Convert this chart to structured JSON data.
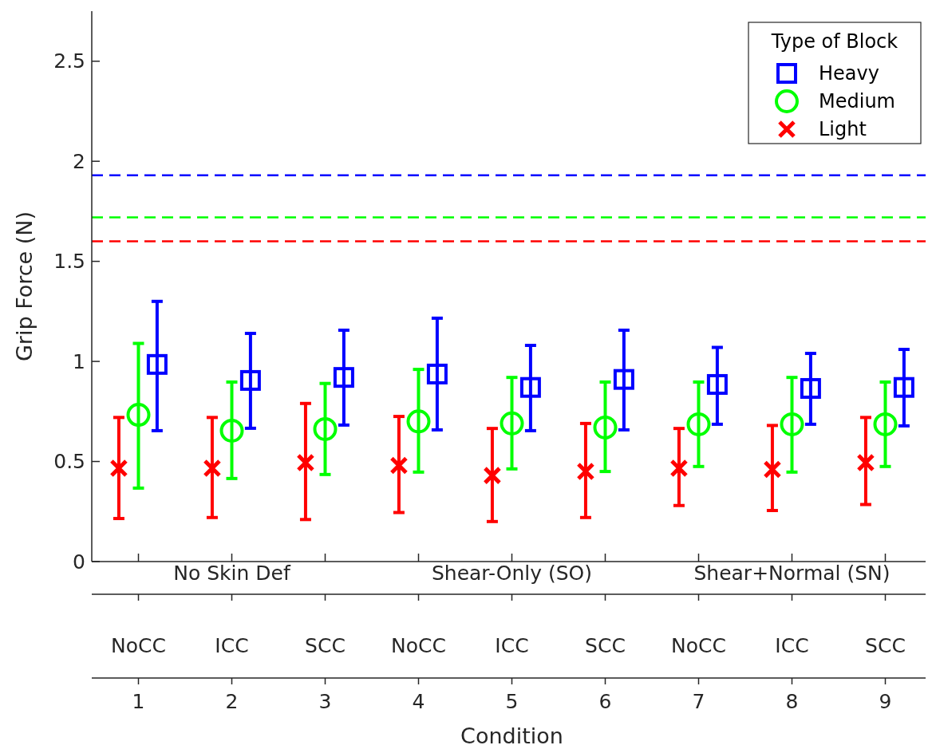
{
  "chart_data": {
    "type": "scatter",
    "xlabel": "Condition",
    "ylabel": "Grip Force (N)",
    "legend_title": "Type of Block",
    "legend": "top right",
    "grid": false,
    "xlim": [
      0.5,
      9.5
    ],
    "xticks": [
      1,
      2,
      3,
      4,
      5,
      6,
      7,
      8,
      9
    ],
    "ylim": [
      0,
      2.75
    ],
    "yticks": [
      0,
      0.5,
      1,
      1.5,
      2,
      2.5
    ],
    "series": [
      {
        "name": "Heavy",
        "color": "#0000ff",
        "marker": "square",
        "x": [
          1.2,
          2.2,
          3.2,
          4.2,
          5.2,
          6.2,
          7.2,
          8.2,
          9.2
        ],
        "values": [
          0.985,
          0.905,
          0.92,
          0.937,
          0.87,
          0.91,
          0.885,
          0.865,
          0.87
        ],
        "errors": [
          [
            0.654,
            1.3
          ],
          [
            0.666,
            1.14
          ],
          [
            0.682,
            1.156
          ],
          [
            0.658,
            1.216
          ],
          [
            0.654,
            1.08
          ],
          [
            0.658,
            1.156
          ],
          [
            0.686,
            1.07
          ],
          [
            0.686,
            1.04
          ],
          [
            0.678,
            1.06
          ]
        ]
      },
      {
        "name": "Medium",
        "color": "#00ff00",
        "marker": "circle",
        "x": [
          1,
          2,
          3,
          4,
          5,
          6,
          7,
          8,
          9
        ],
        "values": [
          0.733,
          0.654,
          0.662,
          0.7,
          0.69,
          0.67,
          0.686,
          0.686,
          0.686
        ],
        "errors": [
          [
            0.367,
            1.09
          ],
          [
            0.415,
            0.897
          ],
          [
            0.435,
            0.89
          ],
          [
            0.447,
            0.96
          ],
          [
            0.463,
            0.92
          ],
          [
            0.45,
            0.897
          ],
          [
            0.475,
            0.897
          ],
          [
            0.447,
            0.92
          ],
          [
            0.475,
            0.897
          ]
        ]
      },
      {
        "name": "Light",
        "color": "#ff0000",
        "marker": "cross",
        "x": [
          0.79,
          1.79,
          2.79,
          3.79,
          4.79,
          5.79,
          6.79,
          7.79,
          8.79
        ],
        "values": [
          0.466,
          0.466,
          0.494,
          0.48,
          0.43,
          0.45,
          0.466,
          0.46,
          0.494
        ],
        "errors": [
          [
            0.215,
            0.72
          ],
          [
            0.22,
            0.72
          ],
          [
            0.21,
            0.79
          ],
          [
            0.245,
            0.725
          ],
          [
            0.2,
            0.665
          ],
          [
            0.22,
            0.69
          ],
          [
            0.28,
            0.665
          ],
          [
            0.255,
            0.68
          ],
          [
            0.285,
            0.72
          ]
        ]
      }
    ],
    "ref_lines": [
      {
        "axis": "y",
        "value": 1.93,
        "color": "#0000ff",
        "line_style": "dashed"
      },
      {
        "axis": "y",
        "value": 1.72,
        "color": "#00ff00",
        "line_style": "dashed"
      },
      {
        "axis": "y",
        "value": 1.6,
        "color": "#ff0000",
        "line_style": "dashed"
      }
    ],
    "annotations": [
      "No Skin Def",
      "Shear-Only (SO)",
      "Shear+Normal (SN)",
      "NoCC",
      "ICC",
      "SCC",
      "NoCC",
      "ICC",
      "SCC",
      "NoCC",
      "ICC",
      "SCC"
    ]
  }
}
